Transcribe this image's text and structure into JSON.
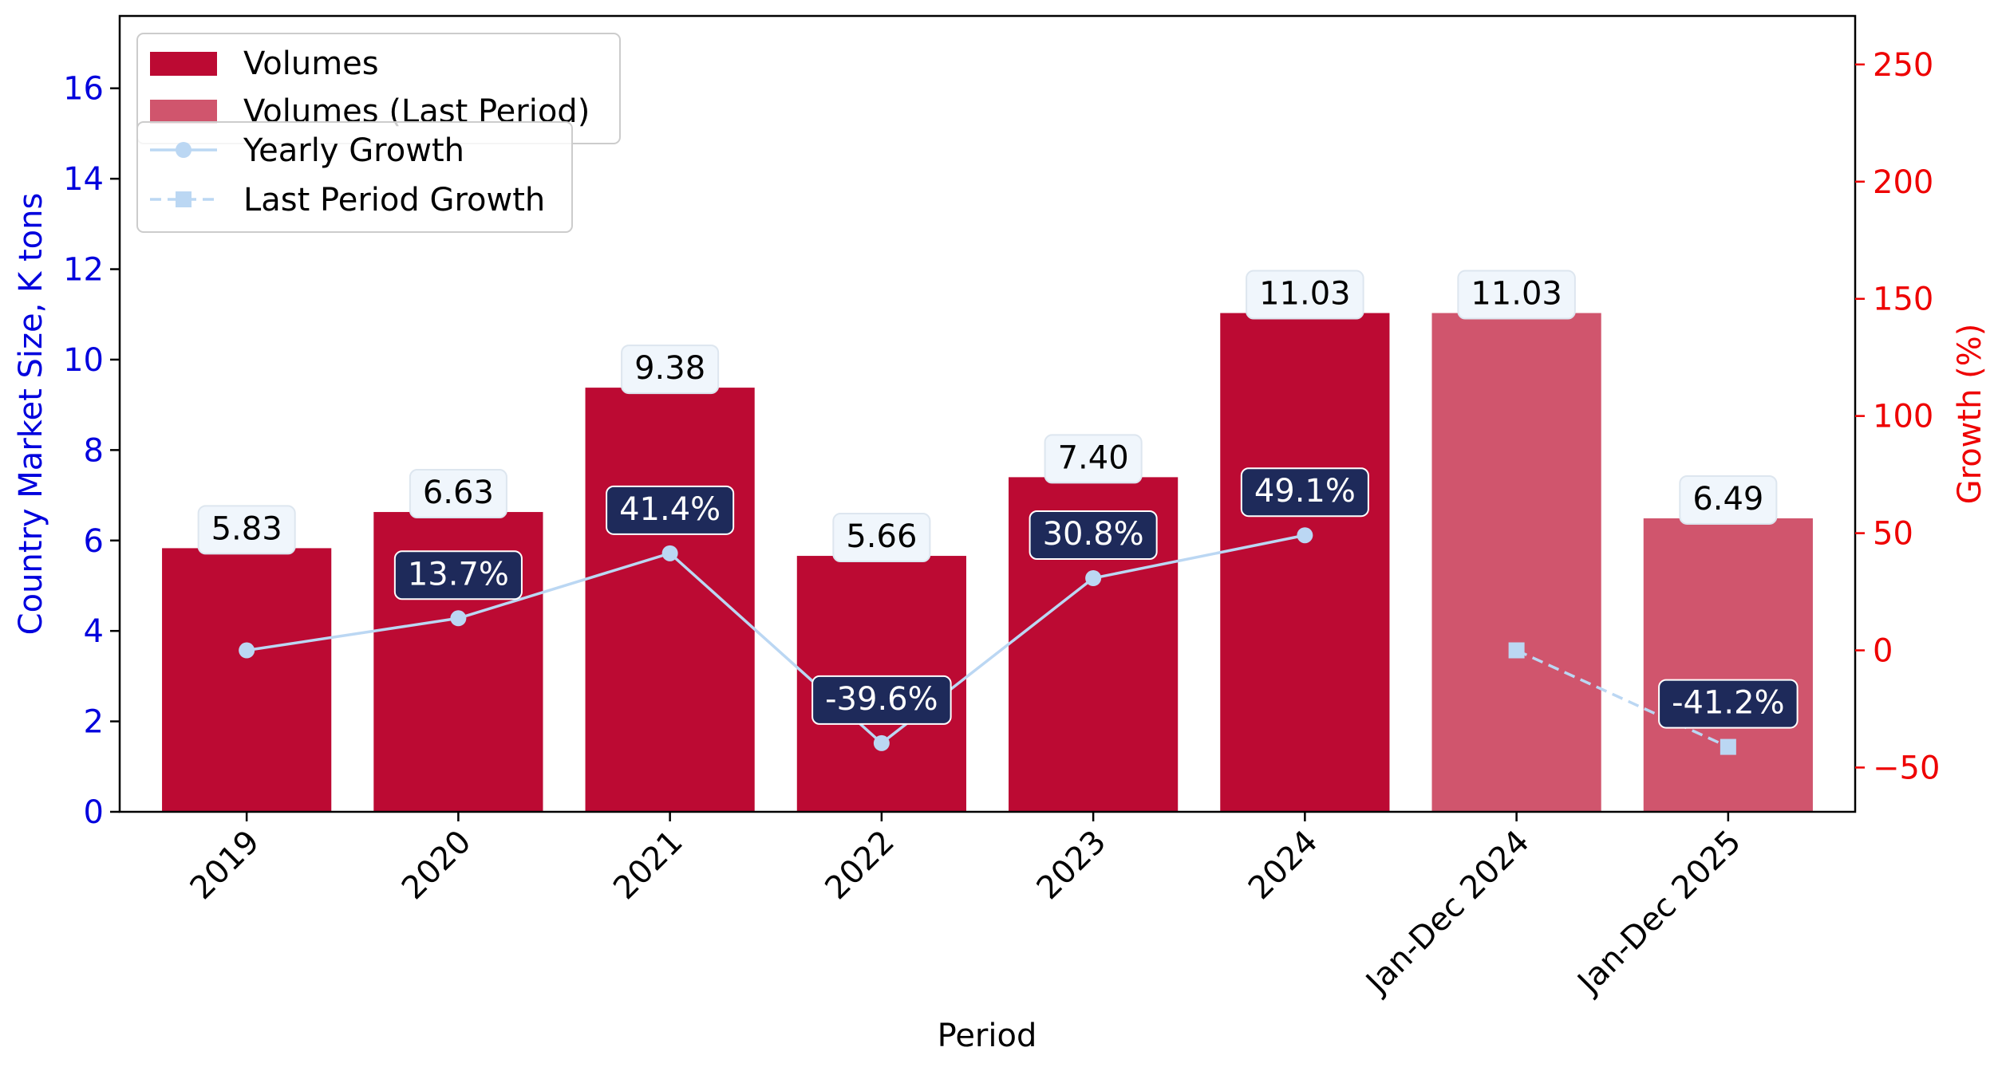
{
  "chart_data": {
    "type": "bar",
    "xlabel": "Period",
    "ylabel": "Country Market Size, K tons",
    "y2label": "Growth (%)",
    "categories": [
      "2019",
      "2020",
      "2021",
      "2022",
      "2023",
      "2024",
      "Jan-Dec 2024",
      "Jan-Dec 2025"
    ],
    "ylim": [
      0,
      17.6
    ],
    "y2lim": [
      -68.9,
      270.7
    ],
    "yticks": [
      0,
      2,
      4,
      6,
      8,
      10,
      12,
      14,
      16
    ],
    "y2ticks": [
      -50,
      0,
      50,
      100,
      150,
      200,
      250
    ],
    "series": [
      {
        "name": "Volumes",
        "kind": "bar",
        "color": "#BC0A33",
        "values": [
          5.83,
          6.63,
          9.38,
          5.66,
          7.4,
          11.03,
          null,
          null
        ],
        "labels": [
          "5.83",
          "6.63",
          "9.38",
          "5.66",
          "7.40",
          "11.03",
          "",
          ""
        ]
      },
      {
        "name": "Volumes (Last Period)",
        "kind": "bar",
        "color": "#D0556D",
        "values": [
          null,
          null,
          null,
          null,
          null,
          null,
          11.03,
          6.49
        ],
        "labels": [
          "",
          "",
          "",
          "",
          "",
          "",
          "11.03",
          "6.49"
        ]
      },
      {
        "name": "Yearly Growth",
        "kind": "line",
        "axis": "right",
        "color": "#BBD7F3",
        "marker": "circle",
        "values": [
          0,
          13.7,
          41.4,
          -39.6,
          30.8,
          49.1,
          null,
          null
        ],
        "labels": [
          "",
          "13.7%",
          "41.4%",
          "-39.6%",
          "30.8%",
          "49.1%",
          "",
          ""
        ]
      },
      {
        "name": "Last Period Growth",
        "kind": "line",
        "axis": "right",
        "dashed": true,
        "color": "#BBD7F3",
        "marker": "square",
        "values": [
          null,
          null,
          null,
          null,
          null,
          null,
          0,
          -41.2
        ],
        "labels": [
          "",
          "",
          "",
          "",
          "",
          "",
          "",
          "-41.2%"
        ]
      }
    ],
    "legend": "top-left",
    "grid": false
  },
  "colors": {
    "left_axis": "#0000DD",
    "right_axis": "#EE0000",
    "bar_label_box": "#F0F6FC",
    "growth_label_box": "#1E2A5A"
  }
}
